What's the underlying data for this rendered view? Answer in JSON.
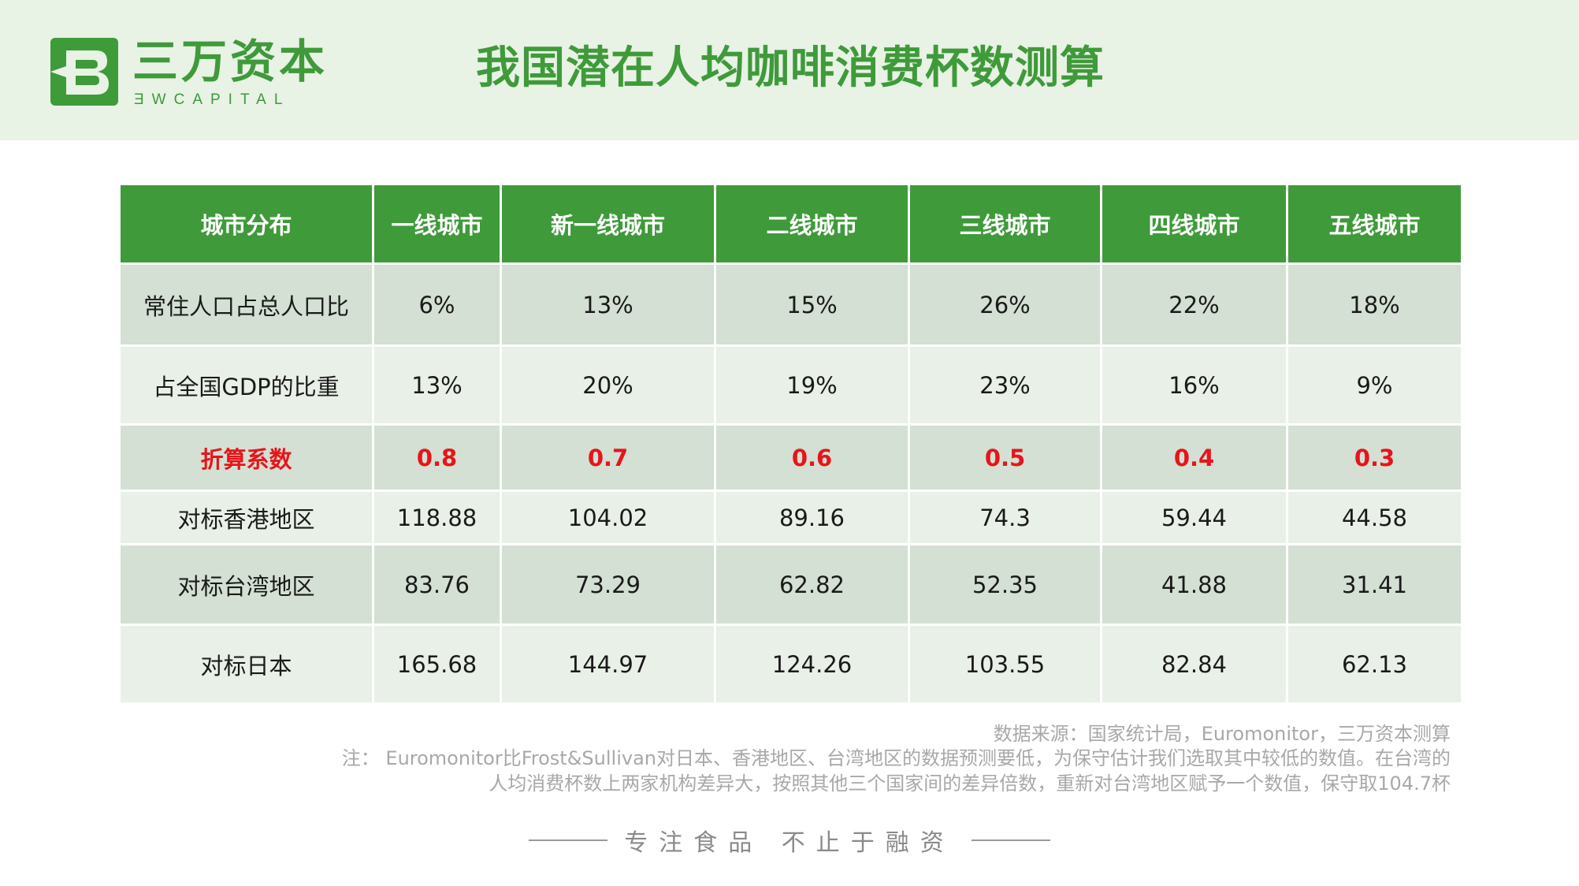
{
  "brand": {
    "name_cn": "三万资本",
    "name_en": "ƎWCAPITAL",
    "color": "#3f9a3a"
  },
  "page": {
    "title": "我国潜在人均咖啡消费杯数测算"
  },
  "table": {
    "headers": [
      "城市分布",
      "一线城市",
      "新一线城市",
      "二线城市",
      "三线城市",
      "四线城市",
      "五线城市"
    ],
    "rows": [
      {
        "label": "常住人口占总人口比",
        "values": [
          "6%",
          "13%",
          "15%",
          "26%",
          "22%",
          "18%"
        ]
      },
      {
        "label": "占全国GDP的比重",
        "values": [
          "13%",
          "20%",
          "19%",
          "23%",
          "16%",
          "9%"
        ]
      },
      {
        "label": "折算系数",
        "values": [
          "0.8",
          "0.7",
          "0.6",
          "0.5",
          "0.4",
          "0.3"
        ]
      },
      {
        "label": "对标香港地区",
        "values": [
          "118.88",
          "104.02",
          "89.16",
          "74.3",
          "59.44",
          "44.58"
        ]
      },
      {
        "label": "对标台湾地区",
        "values": [
          "83.76",
          "73.29",
          "62.82",
          "52.35",
          "41.88",
          "31.41"
        ]
      },
      {
        "label": "对标日本",
        "values": [
          "165.68",
          "144.97",
          "124.26",
          "103.55",
          "82.84",
          "62.13"
        ]
      }
    ],
    "header_color": "#3f9a3a",
    "highlight_color": "#e8141a"
  },
  "source": "数据来源：国家统计局，Euromonitor，三万资本测算",
  "note": {
    "line1": "注： Euromonitor比Frost&Sullivan对日本、香港地区、台湾地区的数据预测要低，为保守估计我们选取其中较低的数值。在台湾的",
    "line2": "人均消费杯数上两家机构差异大，按照其他三个国家间的差异倍数，重新对台湾地区赋予一个数值，保守取104.7杯"
  },
  "footer": {
    "slogan": "专注食品 不止于融资"
  }
}
